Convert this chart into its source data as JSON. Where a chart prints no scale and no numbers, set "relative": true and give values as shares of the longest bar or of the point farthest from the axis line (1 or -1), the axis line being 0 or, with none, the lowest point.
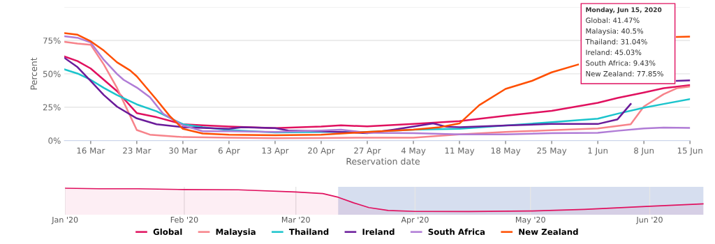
{
  "chart_data": [
    {
      "type": "line",
      "xlabel": "Reservation date",
      "ylabel": "Percent",
      "grid": "y",
      "legend": "bottom",
      "marker": "none",
      "line_style": "solid",
      "xlim": [
        "2020-03-12",
        "2020-06-15"
      ],
      "ylim": [
        0,
        100
      ],
      "xticks": [
        {
          "value": "2020-03-16",
          "label": "16 Mar"
        },
        {
          "value": "2020-03-23",
          "label": "23 Mar"
        },
        {
          "value": "2020-03-30",
          "label": "30 Mar"
        },
        {
          "value": "2020-04-06",
          "label": "6 Apr"
        },
        {
          "value": "2020-04-13",
          "label": "13 Apr"
        },
        {
          "value": "2020-04-20",
          "label": "20 Apr"
        },
        {
          "value": "2020-04-27",
          "label": "27 Apr"
        },
        {
          "value": "2020-05-04",
          "label": "4 May"
        },
        {
          "value": "2020-05-11",
          "label": "11 May"
        },
        {
          "value": "2020-05-18",
          "label": "18 May"
        },
        {
          "value": "2020-05-25",
          "label": "25 May"
        },
        {
          "value": "2020-06-01",
          "label": "1 Jun"
        },
        {
          "value": "2020-06-08",
          "label": "8 Jun"
        },
        {
          "value": "2020-06-15",
          "label": "15 Jun"
        }
      ],
      "yticks": [
        {
          "value": 0,
          "label": "0%"
        },
        {
          "value": 25,
          "label": "25%"
        },
        {
          "value": 50,
          "label": "50%"
        },
        {
          "value": 75,
          "label": "75%"
        },
        {
          "value": 100,
          "label": null
        }
      ],
      "annotations": [
        "Monday, Jun 15, 2020",
        "Global: 41.47%",
        "Malaysia: 40.5%",
        "Thailand: 31.04%",
        "Ireland: 45.03%",
        "South Africa: 9.43%",
        "New Zealand: 77.85%"
      ],
      "series": [
        {
          "name": "Global",
          "color": "#e0115f",
          "x": [
            "2020-03-12",
            "2020-03-14",
            "2020-03-16",
            "2020-03-18",
            "2020-03-20",
            "2020-03-23",
            "2020-03-26",
            "2020-03-30",
            "2020-04-02",
            "2020-04-06",
            "2020-04-13",
            "2020-04-20",
            "2020-04-23",
            "2020-04-27",
            "2020-05-04",
            "2020-05-11",
            "2020-05-18",
            "2020-05-25",
            "2020-06-01",
            "2020-06-04",
            "2020-06-08",
            "2020-06-11",
            "2020-06-15"
          ],
          "values": [
            63,
            59.5,
            54,
            45.5,
            37,
            20.6,
            17.5,
            12.2,
            11.4,
            10.5,
            9.3,
            10.5,
            11.4,
            10.6,
            12.4,
            14.6,
            18.6,
            22.3,
            28.3,
            31.9,
            36,
            39.2,
            41.47
          ]
        },
        {
          "name": "Malaysia",
          "color": "#f7838a",
          "x": [
            "2020-03-12",
            "2020-03-14",
            "2020-03-16",
            "2020-03-18",
            "2020-03-20",
            "2020-03-22",
            "2020-03-23",
            "2020-03-25",
            "2020-03-30",
            "2020-04-06",
            "2020-04-13",
            "2020-04-20",
            "2020-04-27",
            "2020-05-04",
            "2020-05-11",
            "2020-05-18",
            "2020-05-25",
            "2020-06-01",
            "2020-06-06",
            "2020-06-08",
            "2020-06-11",
            "2020-06-13",
            "2020-06-15"
          ],
          "values": [
            74,
            72.6,
            71.8,
            56.9,
            39.4,
            18.4,
            7.9,
            4.4,
            2.6,
            2.1,
            1.8,
            1.9,
            2.2,
            2.2,
            4.6,
            6.4,
            7.7,
            9.1,
            12.2,
            25.5,
            34.7,
            39.2,
            40.5
          ]
        },
        {
          "name": "Thailand",
          "color": "#1bc4cc",
          "x": [
            "2020-03-12",
            "2020-03-14",
            "2020-03-16",
            "2020-03-18",
            "2020-03-20",
            "2020-03-23",
            "2020-03-26",
            "2020-03-30",
            "2020-04-02",
            "2020-04-06",
            "2020-04-13",
            "2020-04-20",
            "2020-04-27",
            "2020-05-04",
            "2020-05-11",
            "2020-05-18",
            "2020-05-25",
            "2020-06-01",
            "2020-06-04",
            "2020-06-08",
            "2020-06-11",
            "2020-06-15"
          ],
          "values": [
            53.4,
            50.2,
            45.5,
            39.4,
            34.1,
            27.1,
            21.9,
            12.2,
            10,
            7.9,
            6.1,
            6.5,
            6.4,
            8.2,
            8.8,
            11.3,
            13.7,
            16.4,
            20.1,
            24.6,
            27.4,
            31.04
          ]
        },
        {
          "name": "Ireland",
          "color": "#6a1b9a",
          "x": [
            "2020-03-12",
            "2020-03-14",
            "2020-03-16",
            "2020-03-18",
            "2020-03-20",
            "2020-03-23",
            "2020-03-26",
            "2020-03-30",
            "2020-04-06",
            "2020-04-08",
            "2020-04-13",
            "2020-04-15",
            "2020-04-20",
            "2020-04-27",
            "2020-05-01",
            "2020-05-07",
            "2020-05-09",
            "2020-05-11",
            "2020-05-18",
            "2020-05-25",
            "2020-06-01",
            "2020-06-04",
            "2020-06-06",
            "2020-06-09",
            "2020-06-13",
            "2020-06-15"
          ],
          "values": [
            62,
            55,
            44.6,
            34.1,
            25.4,
            16.6,
            12.2,
            10,
            8.8,
            10,
            9.3,
            7.5,
            7,
            5.5,
            8.2,
            12.8,
            10.4,
            10,
            11.3,
            12.4,
            12.4,
            15.9,
            27.4,
            null,
            44.7,
            45.03
          ]
        },
        {
          "name": "South Africa",
          "color": "#b07cd6",
          "x": [
            "2020-03-12",
            "2020-03-14",
            "2020-03-16",
            "2020-03-18",
            "2020-03-20",
            "2020-03-21",
            "2020-03-23",
            "2020-03-25",
            "2020-03-27",
            "2020-03-30",
            "2020-04-02",
            "2020-04-06",
            "2020-04-13",
            "2020-04-20",
            "2020-04-23",
            "2020-04-27",
            "2020-05-04",
            "2020-05-11",
            "2020-05-18",
            "2020-05-25",
            "2020-06-01",
            "2020-06-04",
            "2020-06-08",
            "2020-06-11",
            "2020-06-15"
          ],
          "values": [
            78.2,
            77,
            73.5,
            60.4,
            49.9,
            45.5,
            39.7,
            32.4,
            20.1,
            11.4,
            7,
            7,
            6.5,
            7.5,
            8.2,
            5.8,
            5.5,
            4.6,
            4.6,
            5.5,
            5.8,
            7.3,
            9.1,
            9.7,
            9.43
          ]
        },
        {
          "name": "New Zealand",
          "color": "#ff4f00",
          "x": [
            "2020-03-12",
            "2020-03-14",
            "2020-03-16",
            "2020-03-18",
            "2020-03-20",
            "2020-03-22",
            "2020-03-23",
            "2020-03-26",
            "2020-03-28",
            "2020-03-30",
            "2020-04-02",
            "2020-04-06",
            "2020-04-13",
            "2020-04-20",
            "2020-04-27",
            "2020-05-04",
            "2020-05-08",
            "2020-05-11",
            "2020-05-14",
            "2020-05-18",
            "2020-05-22",
            "2020-05-25",
            "2020-05-29",
            "2020-06-04",
            "2020-06-13",
            "2020-06-15"
          ],
          "values": [
            80.5,
            79.3,
            74.4,
            67.4,
            58.6,
            52.5,
            48.1,
            30.6,
            18.4,
            8.8,
            5.3,
            4.4,
            4,
            4.4,
            6.4,
            8.2,
            10,
            12.8,
            26.5,
            38.7,
            44.7,
            51.1,
            56.9,
            null,
            77.6,
            77.85
          ]
        }
      ]
    },
    {
      "type": "area",
      "relative": true,
      "tick_labels": "x",
      "grid": "x",
      "xlim": [
        "2020-01-01",
        "2020-06-15"
      ],
      "xticks": [
        {
          "value": "2020-01-01",
          "label": "Jan '20"
        },
        {
          "value": "2020-02-01",
          "label": "Feb '20"
        },
        {
          "value": "2020-03-01",
          "label": "Mar '20"
        },
        {
          "value": "2020-04-01",
          "label": "Apr '20"
        },
        {
          "value": "2020-05-01",
          "label": "May '20"
        },
        {
          "value": "2020-06-01",
          "label": "Jun '20"
        }
      ],
      "bands": [
        {
          "axis": "x",
          "from": "2020-03-12",
          "to": "2020-06-15",
          "color": "#ccd6eb"
        }
      ],
      "series": [
        {
          "color": "#e0115f",
          "x": [
            "2020-01-01",
            "2020-01-10",
            "2020-01-20",
            "2020-02-01",
            "2020-02-15",
            "2020-03-01",
            "2020-03-08",
            "2020-03-12",
            "2020-03-16",
            "2020-03-20",
            "2020-03-25",
            "2020-04-01",
            "2020-04-15",
            "2020-05-01",
            "2020-05-15",
            "2020-06-01",
            "2020-06-15"
          ],
          "values": [
            1,
            0.98,
            0.98,
            0.95,
            0.94,
            0.86,
            0.8,
            0.66,
            0.45,
            0.27,
            0.16,
            0.125,
            0.12,
            0.14,
            0.2,
            0.32,
            0.41
          ]
        }
      ]
    }
  ]
}
